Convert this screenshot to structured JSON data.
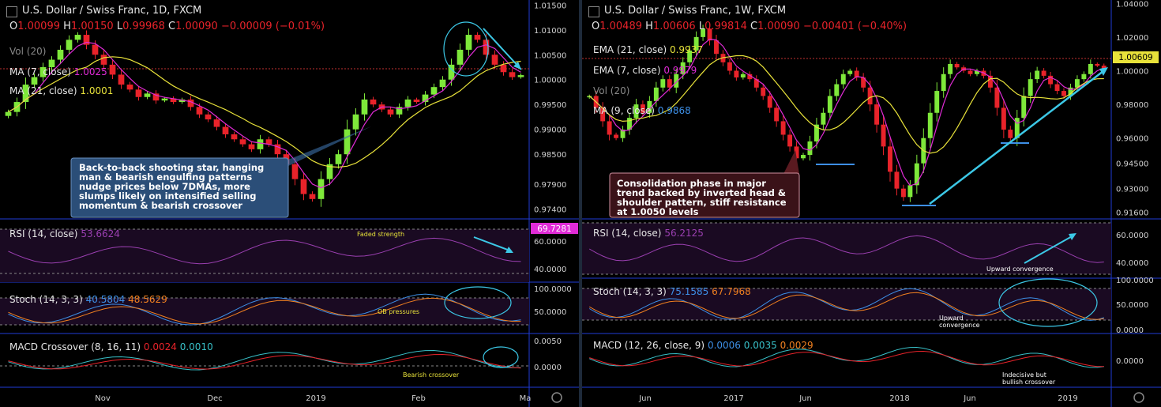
{
  "colors": {
    "up": "#7ee83a",
    "down": "#e8232a",
    "ma7": "#e02bd6",
    "ma21": "#e8e23a",
    "ema7": "#e02bd6",
    "ema21": "#e8e23a",
    "rsi": "#9a3fb0",
    "stochK": "#3d8fe6",
    "stochD": "#f08020",
    "macdSignal": "#e8232a",
    "macdLine": "#38c0c8",
    "annotation": "#3cc8e6",
    "grid_border": "#1f3bd6",
    "axis_text": "#d0d0d0"
  },
  "left": {
    "title": "U.S. Dollar / Swiss Franc, 1D, FXCM",
    "ohlc": {
      "o_label": "O",
      "o": "1.00099",
      "h_label": "H",
      "h": "1.00150",
      "l_label": "L",
      "l": "0.99968",
      "c_label": "C",
      "c": "1.00090",
      "change": "−0.00009 (−0.01%)"
    },
    "vol_label": "Vol (20)",
    "ma7_label": "MA (7, close)",
    "ma7_value": "1.0025",
    "ma21_label": "MA (21, close)",
    "ma21_value": "1.0001",
    "annotation": "Back-to-back shooting star, hanging man & bearish engulfing patterns nudge prices below 7DMAs, more slumps likely on intensified selling momentum & bearish crossover",
    "rsi_label": "RSI (14, close)",
    "rsi_value": "53.6624",
    "rsi_note": "Faded strength",
    "rsi_marker": "69.7281",
    "stoch_label": "Stoch (14, 3, 3)",
    "stoch_k": "40.5804",
    "stoch_d": "48.5629",
    "stoch_note": "OB pressures",
    "macd_label": "MACD Crossover (8, 16, 11)",
    "macd_v1": "0.0024",
    "macd_v2": "0.0010",
    "macd_note": "Bearish crossover",
    "price_ticks": [
      "1.01500",
      "1.01000",
      "1.00500",
      "1.00000",
      "0.99500",
      "0.99000",
      "0.98500",
      "0.97900",
      "0.97400"
    ],
    "rsi_ticks": [
      "60.0000",
      "40.0000"
    ],
    "stoch_ticks": [
      "100.0000",
      "50.0000"
    ],
    "macd_ticks": [
      "0.0050",
      "0.0000"
    ],
    "x_ticks": [
      "Nov",
      "Dec",
      "2019",
      "Feb",
      "Ma"
    ]
  },
  "right": {
    "title": "U.S. Dollar / Swiss Franc, 1W, FXCM",
    "ohlc": {
      "o_label": "O",
      "o": "1.00489",
      "h_label": "H",
      "h": "1.00606",
      "l_label": "L",
      "l": "0.99814",
      "c_label": "C",
      "c": "1.00090",
      "change": "−0.00401 (−0.40%)"
    },
    "ema21_label": "EMA (21, close)",
    "ema21_value": "0.9937",
    "ema7_label": "EMA (7, close)",
    "ema7_value": "0.9979",
    "vol_label": "Vol (20)",
    "ma9_label": "MA (9, close)",
    "ma9_value": "0.9868",
    "price_marker": "1.00609",
    "annotation": "Consolidation phase in major trend backed by inverted head & shoulder pattern, stiff resistance at 1.0050 levels",
    "rsi_label": "RSI (14, close)",
    "rsi_value": "56.2125",
    "rsi_note": "Upward convergence",
    "stoch_label": "Stoch (14, 3, 3)",
    "stoch_k": "75.1585",
    "stoch_d": "67.7968",
    "stoch_note": "Upward convergence",
    "macd_label": "MACD (12, 26, close, 9)",
    "macd_v1": "0.0006",
    "macd_v2": "0.0035",
    "macd_v3": "0.0029",
    "macd_note": "Indecisive but bullish crossover",
    "price_ticks": [
      "1.04000",
      "1.02000",
      "1.00000",
      "0.98000",
      "0.96000",
      "0.94500",
      "0.93000",
      "0.91600"
    ],
    "rsi_ticks": [
      "60.0000",
      "40.0000"
    ],
    "stoch_ticks": [
      "100.0000",
      "50.0000",
      "0.0000"
    ],
    "macd_ticks": [
      "0.0000"
    ],
    "x_ticks": [
      "Jun",
      "2017",
      "Jun",
      "2018",
      "Jun",
      "2019"
    ]
  },
  "chart_data": [
    {
      "type": "candlestick",
      "title": "U.S. Dollar / Swiss Franc, 1D, FXCM",
      "ylim": [
        0.972,
        1.016
      ],
      "x_ticks": [
        "Nov",
        "Dec",
        "2019",
        "Feb",
        "Ma"
      ],
      "close_path": [
        0.9935,
        0.9955,
        0.999,
        1.0005,
        1.0025,
        1.004,
        1.006,
        1.008,
        1.009,
        1.007,
        1.005,
        1.003,
        1.001,
        0.999,
        0.998,
        0.9965,
        0.9972,
        0.9958,
        0.9962,
        0.9955,
        0.996,
        0.9945,
        0.993,
        0.992,
        0.9905,
        0.989,
        0.988,
        0.987,
        0.986,
        0.988,
        0.987,
        0.985,
        0.983,
        0.98,
        0.977,
        0.976,
        0.98,
        0.983,
        0.985,
        0.99,
        0.993,
        0.996,
        0.995,
        0.994,
        0.993,
        0.9945,
        0.996,
        0.9955,
        0.997,
        0.9985,
        1.0,
        1.003,
        1.006,
        1.009,
        1.008,
        1.005,
        1.003,
        1.0015,
        1.0005,
        1.0009
      ],
      "series": [
        {
          "name": "MA (7, close)",
          "last": 1.0025
        },
        {
          "name": "MA (21, close)",
          "last": 1.0001
        }
      ],
      "indicators": {
        "rsi": {
          "name": "RSI (14, close)",
          "last": 53.6624,
          "ylim": [
            20,
            80
          ]
        },
        "stoch": {
          "name": "Stoch (14, 3, 3)",
          "k": 40.5804,
          "d": 48.5629
        },
        "macd": {
          "name": "MACD Crossover (8, 16, 11)",
          "v1": 0.0024,
          "v2": 0.001
        }
      }
    },
    {
      "type": "candlestick",
      "title": "U.S. Dollar / Swiss Franc, 1W, FXCM",
      "ylim": [
        0.912,
        1.042
      ],
      "x_ticks": [
        "Jun",
        "2017",
        "Jun",
        "2018",
        "Jun",
        "2019"
      ],
      "close_path": [
        0.985,
        0.978,
        0.97,
        0.962,
        0.96,
        0.965,
        0.972,
        0.98,
        0.975,
        0.982,
        0.99,
        0.995,
        0.99,
        0.998,
        1.005,
        1.012,
        1.02,
        1.025,
        1.018,
        1.01,
        1.005,
        1.0,
        0.996,
        0.998,
        0.995,
        0.99,
        0.985,
        0.978,
        0.97,
        0.962,
        0.955,
        0.948,
        0.95,
        0.958,
        0.968,
        0.975,
        0.985,
        0.992,
        0.998,
        1.0,
        0.996,
        0.99,
        0.98,
        0.968,
        0.955,
        0.94,
        0.93,
        0.925,
        0.932,
        0.945,
        0.96,
        0.975,
        0.988,
        0.998,
        1.004,
        1.002,
        1.0,
        0.998,
        1.0,
        0.997,
        0.99,
        0.978,
        0.965,
        0.96,
        0.972,
        0.985,
        0.995,
        1.0,
        0.997,
        0.992,
        0.988,
        0.985,
        0.99,
        0.995,
        0.998,
        1.004,
        1.003,
        1.001
      ],
      "series": [
        {
          "name": "EMA (21, close)",
          "last": 0.9937
        },
        {
          "name": "EMA (7, close)",
          "last": 0.9979
        },
        {
          "name": "MA (9, close)",
          "last": 0.9868
        }
      ],
      "indicators": {
        "rsi": {
          "name": "RSI (14, close)",
          "last": 56.2125
        },
        "stoch": {
          "name": "Stoch (14, 3, 3)",
          "k": 75.1585,
          "d": 67.7968
        },
        "macd": {
          "name": "MACD (12, 26, close, 9)",
          "v1": 0.0006,
          "v2": 0.0035,
          "v3": 0.0029
        }
      }
    }
  ]
}
